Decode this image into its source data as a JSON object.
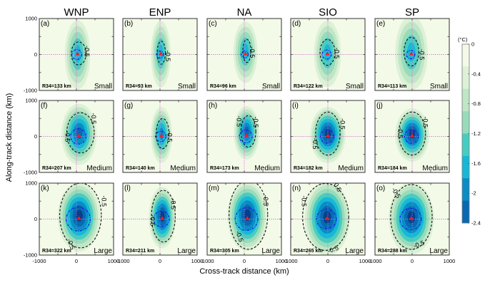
{
  "chart_data": {
    "type": "heatmap",
    "title": "",
    "xlabel": "Cross-track distance (km)",
    "ylabel": "Along-track distance (km)",
    "xlim": [
      -1000,
      1000
    ],
    "ylim": [
      -1000,
      1000
    ],
    "xticks": [
      -1000,
      0,
      1000
    ],
    "yticks": [
      -1000,
      0,
      1000
    ],
    "column_titles": [
      "WNP",
      "ENP",
      "NA",
      "SIO",
      "SP"
    ],
    "row_labels": [
      "Small",
      "Medium",
      "Large"
    ],
    "colorbar": {
      "unit": "(°C)",
      "levels": [
        0,
        -0.4,
        -0.8,
        -1.2,
        -1.6,
        -2,
        -2.4
      ],
      "tick_labels": [
        "0",
        "-0.4",
        "-0.8",
        "-1.2",
        "-1.6",
        "-2",
        "-2.4"
      ],
      "colors": [
        "#f3fae8",
        "#dcf1d6",
        "#bfe6c5",
        "#98dbbb",
        "#47cdc0",
        "#16b8d6",
        "#0a8cc4",
        "#0869b2",
        "#083f8c"
      ]
    },
    "contour_label": "-0.5",
    "panels": [
      {
        "id": "(a)",
        "basin": "WNP",
        "size": "Small",
        "r34": "R34=133 km",
        "r34_km": 133,
        "min_anomaly": -0.9,
        "center": [
          30,
          -10
        ],
        "sx": 180,
        "sy": 520,
        "contour": [
          200,
          320,
          60
        ],
        "labels": [
          {
            "text": "-0.5",
            "x": 220,
            "y": 90,
            "rot": 90
          }
        ]
      },
      {
        "id": "(b)",
        "basin": "ENP",
        "size": "Small",
        "r34": "R34=93 km",
        "r34_km": 93,
        "min_anomaly": -0.9,
        "center": [
          20,
          10
        ],
        "sx": 140,
        "sy": 500,
        "contour": [
          110,
          320,
          30
        ],
        "labels": [
          {
            "text": "-0.5",
            "x": 150,
            "y": -40,
            "rot": 90
          }
        ]
      },
      {
        "id": "(c)",
        "basin": "NA",
        "size": "Small",
        "r34": "R34=96 km",
        "r34_km": 96,
        "min_anomaly": -0.9,
        "center": [
          30,
          60
        ],
        "sx": 170,
        "sy": 460,
        "contour": [
          110,
          320,
          80
        ],
        "labels": [
          {
            "text": "-0.5",
            "x": 150,
            "y": 60,
            "rot": 90
          }
        ]
      },
      {
        "id": "(d)",
        "basin": "SIO",
        "size": "Small",
        "r34": "R34=122 km",
        "r34_km": 122,
        "min_anomaly": -1.0,
        "center": [
          -10,
          20
        ],
        "sx": 190,
        "sy": 500,
        "contour": [
          200,
          360,
          0
        ],
        "labels": [
          {
            "text": "-0.5",
            "x": 180,
            "y": 40,
            "rot": 90
          }
        ]
      },
      {
        "id": "(e)",
        "basin": "SP",
        "size": "Small",
        "r34": "R34=113 km",
        "r34_km": 113,
        "min_anomaly": -1.0,
        "center": [
          -20,
          40
        ],
        "sx": 230,
        "sy": 560,
        "contour": [
          200,
          400,
          0
        ],
        "labels": [
          {
            "text": "-0.5",
            "x": 200,
            "y": 0,
            "rot": 90
          }
        ]
      },
      {
        "id": "(f)",
        "basin": "WNP",
        "size": "Medium",
        "r34": "R34=207 km",
        "r34_km": 207,
        "min_anomaly": -1.4,
        "center": [
          70,
          60
        ],
        "sx": 250,
        "sy": 460,
        "contour": [
          370,
          560,
          80
        ],
        "labels": [
          {
            "text": "-0.5",
            "x": 400,
            "y": 500,
            "rot": 90
          },
          {
            "text": "-0.5",
            "x": -300,
            "y": 0,
            "rot": 90
          }
        ]
      },
      {
        "id": "(g)",
        "basin": "ENP",
        "size": "Medium",
        "r34": "R34=140 km",
        "r34_km": 140,
        "min_anomaly": -1.2,
        "center": [
          40,
          40
        ],
        "sx": 150,
        "sy": 420,
        "contour": [
          170,
          420,
          60
        ],
        "labels": [
          {
            "text": "-0.5",
            "x": 200,
            "y": 0,
            "rot": 90
          }
        ]
      },
      {
        "id": "(h)",
        "basin": "NA",
        "size": "Medium",
        "r34": "R34=173 km",
        "r34_km": 173,
        "min_anomaly": -1.3,
        "center": [
          60,
          100
        ],
        "sx": 180,
        "sy": 400,
        "contour": [
          200,
          440,
          100
        ],
        "labels": [
          {
            "text": "-0.5",
            "x": -200,
            "y": 420,
            "rot": 90
          },
          {
            "text": "-0.5",
            "x": 250,
            "y": 400,
            "rot": 90
          }
        ]
      },
      {
        "id": "(i)",
        "basin": "SIO",
        "size": "Medium",
        "r34": "R34=182 km",
        "r34_km": 182,
        "min_anomaly": -1.6,
        "center": [
          0,
          40
        ],
        "sx": 250,
        "sy": 420,
        "contour": [
          330,
          600,
          0
        ],
        "labels": [
          {
            "text": "-0.5",
            "x": 340,
            "y": 350,
            "rot": 90
          },
          {
            "text": "-0.5",
            "x": -400,
            "y": -200,
            "rot": 90
          }
        ]
      },
      {
        "id": "(j)",
        "basin": "SP",
        "size": "Medium",
        "r34": "R34=184 km",
        "r34_km": 184,
        "min_anomaly": -1.6,
        "center": [
          0,
          40
        ],
        "sx": 240,
        "sy": 400,
        "contour": [
          360,
          600,
          0
        ],
        "labels": [
          {
            "text": "-0.5",
            "x": 300,
            "y": 400,
            "rot": 90
          },
          {
            "text": "-0.5",
            "x": -380,
            "y": 100,
            "rot": 90
          }
        ]
      },
      {
        "id": "(k)",
        "basin": "WNP",
        "size": "Large",
        "r34": "R34=322 km",
        "r34_km": 322,
        "min_anomaly": -2.2,
        "center": [
          70,
          60
        ],
        "sx": 300,
        "sy": 520,
        "contour": [
          560,
          900,
          80
        ],
        "labels": [
          {
            "text": "-0.5",
            "x": 680,
            "y": 500,
            "rot": 90
          },
          {
            "text": "-0.5",
            "x": -200,
            "y": -720,
            "rot": 70
          }
        ]
      },
      {
        "id": "(l)",
        "basin": "ENP",
        "size": "Large",
        "r34": "R34=211 km",
        "r34_km": 211,
        "min_anomaly": -1.8,
        "center": [
          60,
          40
        ],
        "sx": 190,
        "sy": 460,
        "contour": [
          320,
          720,
          60
        ],
        "labels": [
          {
            "text": "-0.5",
            "x": 300,
            "y": 420,
            "rot": 90
          },
          {
            "text": "-0.5",
            "x": -260,
            "y": -40,
            "rot": 90
          }
        ]
      },
      {
        "id": "(m)",
        "basin": "NA",
        "size": "Large",
        "r34": "R34=305 km",
        "r34_km": 305,
        "min_anomaly": -2.2,
        "center": [
          80,
          80
        ],
        "sx": 280,
        "sy": 520,
        "contour": [
          520,
          960,
          60
        ],
        "labels": [
          {
            "text": "-0.5",
            "x": 520,
            "y": 520,
            "rot": 90
          },
          {
            "text": "-0.5",
            "x": -180,
            "y": -500,
            "rot": 70
          }
        ]
      },
      {
        "id": "(n)",
        "basin": "SIO",
        "size": "Large",
        "r34": "R34=265 km",
        "r34_km": 265,
        "min_anomaly": -2.2,
        "center": [
          -20,
          20
        ],
        "sx": 320,
        "sy": 560,
        "contour": [
          620,
          930,
          -80
        ],
        "labels": [
          {
            "text": "-0.5",
            "x": -700,
            "y": 500,
            "rot": 90
          },
          {
            "text": "-0.5",
            "x": 200,
            "y": 880,
            "rot": 60
          },
          {
            "text": "-0.5",
            "x": 160,
            "y": -900,
            "rot": -20
          }
        ]
      },
      {
        "id": "(o)",
        "basin": "SP",
        "size": "Large",
        "r34": "R34=288 km",
        "r34_km": 288,
        "min_anomaly": -2.2,
        "center": [
          -20,
          20
        ],
        "sx": 320,
        "sy": 540,
        "contour": [
          560,
          900,
          0
        ],
        "labels": [
          {
            "text": "-0.5",
            "x": -480,
            "y": 700,
            "rot": 60
          },
          {
            "text": "-0.5",
            "x": 200,
            "y": -760,
            "rot": -20
          }
        ]
      }
    ]
  }
}
